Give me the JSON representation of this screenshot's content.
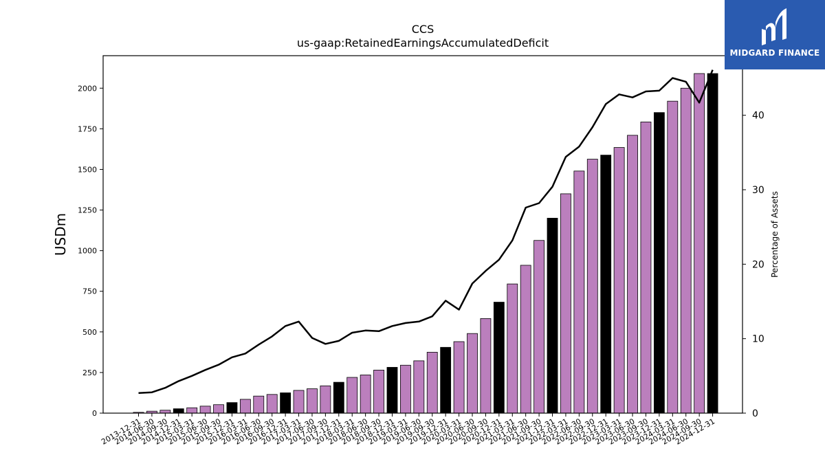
{
  "logo": {
    "text": "MIDGARD FINANCE",
    "bg_color": "#2a5bb0"
  },
  "chart_data": {
    "type": "bar",
    "title": "CCS",
    "subtitle": "us-gaap:RetainedEarningsAccumulatedDeficit",
    "ylabel": "USDm",
    "y2label": "Percentage of Assets",
    "ylim": [
      0,
      2200
    ],
    "y2lim": [
      0,
      48
    ],
    "yticks": [
      0,
      250,
      500,
      750,
      1000,
      1250,
      1500,
      1750,
      2000
    ],
    "y2ticks": [
      0,
      10,
      20,
      30,
      40
    ],
    "grid": false,
    "categories": [
      "2013-12-31",
      "2014-06-30",
      "2014-09-30",
      "2014-12-31",
      "2015-03-31",
      "2015-06-30",
      "2015-09-30",
      "2015-12-31",
      "2016-03-31",
      "2016-06-30",
      "2016-09-30",
      "2016-12-31",
      "2017-03-31",
      "2017-06-30",
      "2017-09-30",
      "2017-12-31",
      "2018-03-31",
      "2018-06-30",
      "2018-09-30",
      "2018-12-31",
      "2019-03-31",
      "2019-06-30",
      "2019-09-30",
      "2019-12-31",
      "2020-03-31",
      "2020-06-30",
      "2020-09-30",
      "2020-12-31",
      "2021-03-31",
      "2021-06-30",
      "2021-09-30",
      "2021-12-31",
      "2022-03-31",
      "2022-06-30",
      "2022-09-30",
      "2022-12-31",
      "2023-03-31",
      "2023-06-30",
      "2023-09-30",
      "2023-12-31",
      "2024-03-31",
      "2024-06-30",
      "2024-09-30",
      "2024-12-31"
    ],
    "highlight_categories": [
      "2014-12-31",
      "2015-12-31",
      "2016-12-31",
      "2017-12-31",
      "2018-12-31",
      "2019-12-31",
      "2020-12-31",
      "2021-12-31",
      "2022-12-31",
      "2023-12-31",
      "2024-12-31"
    ],
    "series": [
      {
        "kind": "bar",
        "axis": "left",
        "values": [
          5,
          12,
          18,
          27,
          33,
          43,
          52,
          65,
          85,
          105,
          115,
          125,
          140,
          150,
          168,
          190,
          220,
          235,
          265,
          282,
          295,
          322,
          375,
          405,
          440,
          490,
          582,
          683,
          795,
          910,
          1063,
          1200,
          1350,
          1490,
          1563,
          1588,
          1635,
          1710,
          1792,
          1850,
          1920,
          2000,
          2090,
          2090
        ]
      },
      {
        "kind": "line",
        "axis": "right",
        "values": [
          2.7,
          2.8,
          3.4,
          4.3,
          5.0,
          5.8,
          6.5,
          7.5,
          8.0,
          9.2,
          10.3,
          11.7,
          12.3,
          10.1,
          9.3,
          9.7,
          10.8,
          11.1,
          11.0,
          11.7,
          12.1,
          12.3,
          13.0,
          15.1,
          13.9,
          17.4,
          19.1,
          20.6,
          23.2,
          27.6,
          28.2,
          30.4,
          34.4,
          35.8,
          38.4,
          41.5,
          42.8,
          42.4,
          43.2,
          43.3,
          45.0,
          44.5,
          41.7,
          46.1
        ]
      }
    ],
    "colors": {
      "bar": "#bb7fbd",
      "bar_highlight": "#000000",
      "line": "#000000"
    }
  }
}
